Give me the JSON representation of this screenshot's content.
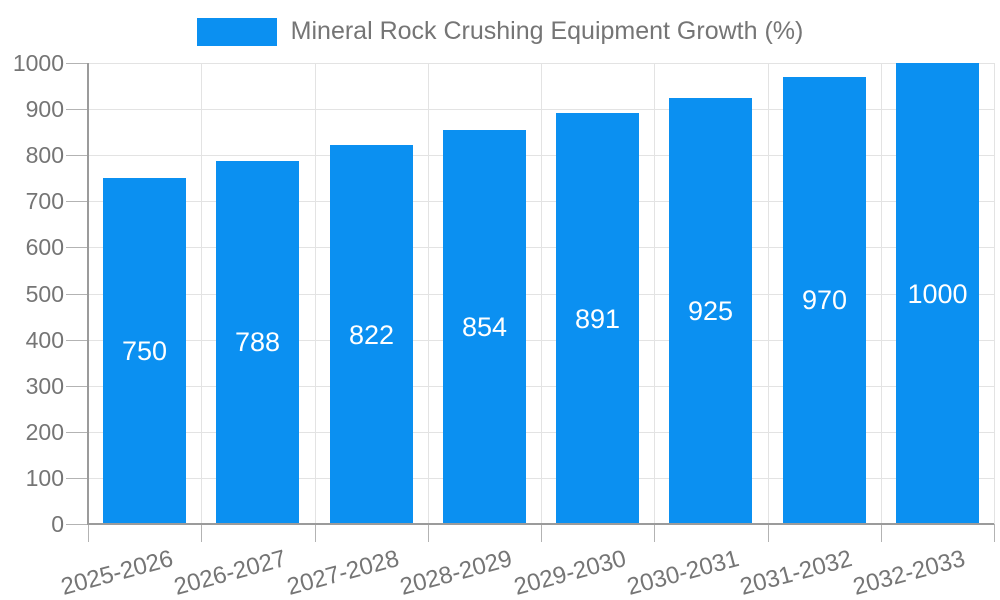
{
  "legend": {
    "label": "Mineral Rock Crushing Equipment Growth (%)",
    "swatch_color": "#0b90f1"
  },
  "chart_data": {
    "type": "bar",
    "title": "Mineral Rock Crushing Equipment Growth (%)",
    "categories": [
      "2025-2026",
      "2026-2027",
      "2027-2028",
      "2028-2029",
      "2029-2030",
      "2030-2031",
      "2031-2032",
      "2032-2033"
    ],
    "values": [
      750,
      788,
      822,
      854,
      891,
      925,
      970,
      1000
    ],
    "xlabel": "",
    "ylabel": "",
    "ylim": [
      0,
      1000
    ],
    "ytick_step": 100,
    "ytick_labels": [
      "0",
      "100",
      "200",
      "300",
      "400",
      "500",
      "600",
      "700",
      "800",
      "900",
      "1000"
    ],
    "legend_position": "top",
    "grid": true,
    "x_label_rotation_deg": -15,
    "bar_value_labels_shown": true,
    "colors": {
      "bar": "#0b90f1",
      "bar_label": "#ffffff",
      "axis_text": "#757575",
      "grid_line": "#e3e3e3",
      "tick_line": "#b3b3b3",
      "axis_line": "#9b9b9b",
      "background": "#ffffff"
    }
  }
}
